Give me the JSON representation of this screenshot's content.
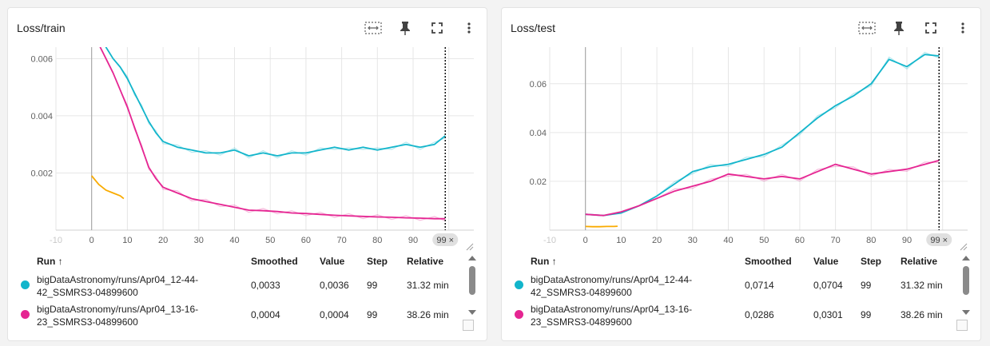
{
  "colors": {
    "cyan": "#12b5cb",
    "cyan_light": "#a6e7f0",
    "magenta": "#e52592",
    "magenta_light": "#f3b0d6",
    "orange": "#f9ab00"
  },
  "toolbar_icons": [
    "fit-domain-icon",
    "pin-icon",
    "fullscreen-icon",
    "more-vert-icon"
  ],
  "cards": [
    {
      "title": "Loss/train",
      "table": {
        "headers": {
          "run": "Run ↑",
          "smoothed": "Smoothed",
          "value": "Value",
          "step": "Step",
          "relative": "Relative"
        },
        "rows": [
          {
            "run_line1": "bigDataAstronomy/runs/Apr04_12-44-",
            "run_line2": "42_SSMRS3-04899600",
            "smoothed": "0,0033",
            "value": "0,0036",
            "step": "99",
            "relative": "31.32 min",
            "color": "#12b5cb"
          },
          {
            "run_line1": "bigDataAstronomy/runs/Apr04_13-16-",
            "run_line2": "23_SSMRS3-04899600",
            "smoothed": "0,0004",
            "value": "0,0004",
            "step": "99",
            "relative": "38.26 min",
            "color": "#e52592"
          }
        ]
      }
    },
    {
      "title": "Loss/test",
      "table": {
        "headers": {
          "run": "Run ↑",
          "smoothed": "Smoothed",
          "value": "Value",
          "step": "Step",
          "relative": "Relative"
        },
        "rows": [
          {
            "run_line1": "bigDataAstronomy/runs/Apr04_12-44-",
            "run_line2": "42_SSMRS3-04899600",
            "smoothed": "0,0714",
            "value": "0,0704",
            "step": "99",
            "relative": "31.32 min",
            "color": "#12b5cb"
          },
          {
            "run_line1": "bigDataAstronomy/runs/Apr04_13-16-",
            "run_line2": "23_SSMRS3-04899600",
            "smoothed": "0,0286",
            "value": "0,0301",
            "step": "99",
            "relative": "38.26 min",
            "color": "#e52592"
          }
        ]
      }
    }
  ],
  "chart_data": [
    {
      "type": "line",
      "title": "Loss/train",
      "xlim": [
        -10,
        107
      ],
      "ylim": [
        0,
        0.0064
      ],
      "x_ticks": [
        "-10",
        "0",
        "10",
        "20",
        "30",
        "40",
        "50",
        "60",
        "70",
        "80",
        "90",
        "100"
      ],
      "x_tick_values": [
        -10,
        0,
        10,
        20,
        30,
        40,
        50,
        60,
        70,
        80,
        90,
        100
      ],
      "y_ticks": [
        "0.002",
        "0.004",
        "0.006"
      ],
      "y_tick_values": [
        0.002,
        0.004,
        0.006
      ],
      "cursor_step": 99,
      "cursor_label": "99 ×",
      "series": [
        {
          "color": "#12b5cb",
          "x": [
            0,
            2,
            4,
            6,
            8,
            10,
            12,
            14,
            16,
            18,
            20,
            24,
            28,
            32,
            36,
            40,
            44,
            48,
            52,
            56,
            60,
            64,
            68,
            72,
            76,
            80,
            84,
            88,
            92,
            96,
            99
          ],
          "y": [
            0.0072,
            0.0068,
            0.0064,
            0.006,
            0.0057,
            0.0053,
            0.0048,
            0.0043,
            0.0038,
            0.0034,
            0.0031,
            0.0029,
            0.0028,
            0.0027,
            0.0027,
            0.0028,
            0.0026,
            0.0027,
            0.0026,
            0.0027,
            0.0027,
            0.0028,
            0.0029,
            0.0028,
            0.0029,
            0.0028,
            0.0029,
            0.003,
            0.0029,
            0.003,
            0.0033
          ]
        },
        {
          "color": "#e52592",
          "x": [
            0,
            2,
            4,
            6,
            8,
            10,
            12,
            14,
            16,
            18,
            20,
            24,
            28,
            32,
            36,
            40,
            44,
            48,
            52,
            56,
            60,
            64,
            68,
            72,
            76,
            80,
            84,
            88,
            92,
            96,
            99
          ],
          "y": [
            0.007,
            0.0065,
            0.006,
            0.0055,
            0.0049,
            0.0043,
            0.0036,
            0.0029,
            0.0022,
            0.0018,
            0.0015,
            0.0013,
            0.0011,
            0.001,
            0.0009,
            0.0008,
            0.0007,
            0.00068,
            0.00065,
            0.0006,
            0.00058,
            0.00055,
            0.00052,
            0.0005,
            0.00048,
            0.00046,
            0.00045,
            0.00043,
            0.00042,
            0.0004,
            0.0004
          ]
        },
        {
          "color": "#f9ab00",
          "x": [
            0,
            2,
            4,
            6,
            8,
            9
          ],
          "y": [
            0.0019,
            0.0016,
            0.0014,
            0.0013,
            0.0012,
            0.0011
          ]
        }
      ]
    },
    {
      "type": "line",
      "title": "Loss/test",
      "xlim": [
        -10,
        107
      ],
      "ylim": [
        0,
        0.075
      ],
      "x_ticks": [
        "-10",
        "0",
        "10",
        "20",
        "30",
        "40",
        "50",
        "60",
        "70",
        "80",
        "90",
        "100"
      ],
      "x_tick_values": [
        -10,
        0,
        10,
        20,
        30,
        40,
        50,
        60,
        70,
        80,
        90,
        100
      ],
      "y_ticks": [
        "0.02",
        "0.04",
        "0.06"
      ],
      "y_tick_values": [
        0.02,
        0.04,
        0.06
      ],
      "cursor_step": 99,
      "cursor_label": "99 ×",
      "series": [
        {
          "color": "#12b5cb",
          "x": [
            0,
            5,
            10,
            15,
            20,
            25,
            30,
            35,
            40,
            45,
            50,
            55,
            60,
            65,
            70,
            75,
            80,
            85,
            90,
            95,
            99
          ],
          "y": [
            0.0065,
            0.006,
            0.007,
            0.01,
            0.014,
            0.019,
            0.024,
            0.026,
            0.027,
            0.029,
            0.031,
            0.034,
            0.04,
            0.046,
            0.051,
            0.055,
            0.06,
            0.07,
            0.067,
            0.072,
            0.0714
          ]
        },
        {
          "color": "#e52592",
          "x": [
            0,
            5,
            10,
            15,
            20,
            25,
            30,
            35,
            40,
            45,
            50,
            55,
            60,
            65,
            70,
            75,
            80,
            85,
            90,
            95,
            99
          ],
          "y": [
            0.0065,
            0.006,
            0.0075,
            0.01,
            0.013,
            0.016,
            0.018,
            0.02,
            0.023,
            0.022,
            0.021,
            0.022,
            0.021,
            0.024,
            0.027,
            0.025,
            0.023,
            0.024,
            0.025,
            0.027,
            0.0286
          ]
        },
        {
          "color": "#f9ab00",
          "x": [
            0,
            2,
            4,
            6,
            8,
            9
          ],
          "y": [
            0.0015,
            0.0014,
            0.0014,
            0.0015,
            0.0015,
            0.0016
          ]
        }
      ]
    }
  ]
}
